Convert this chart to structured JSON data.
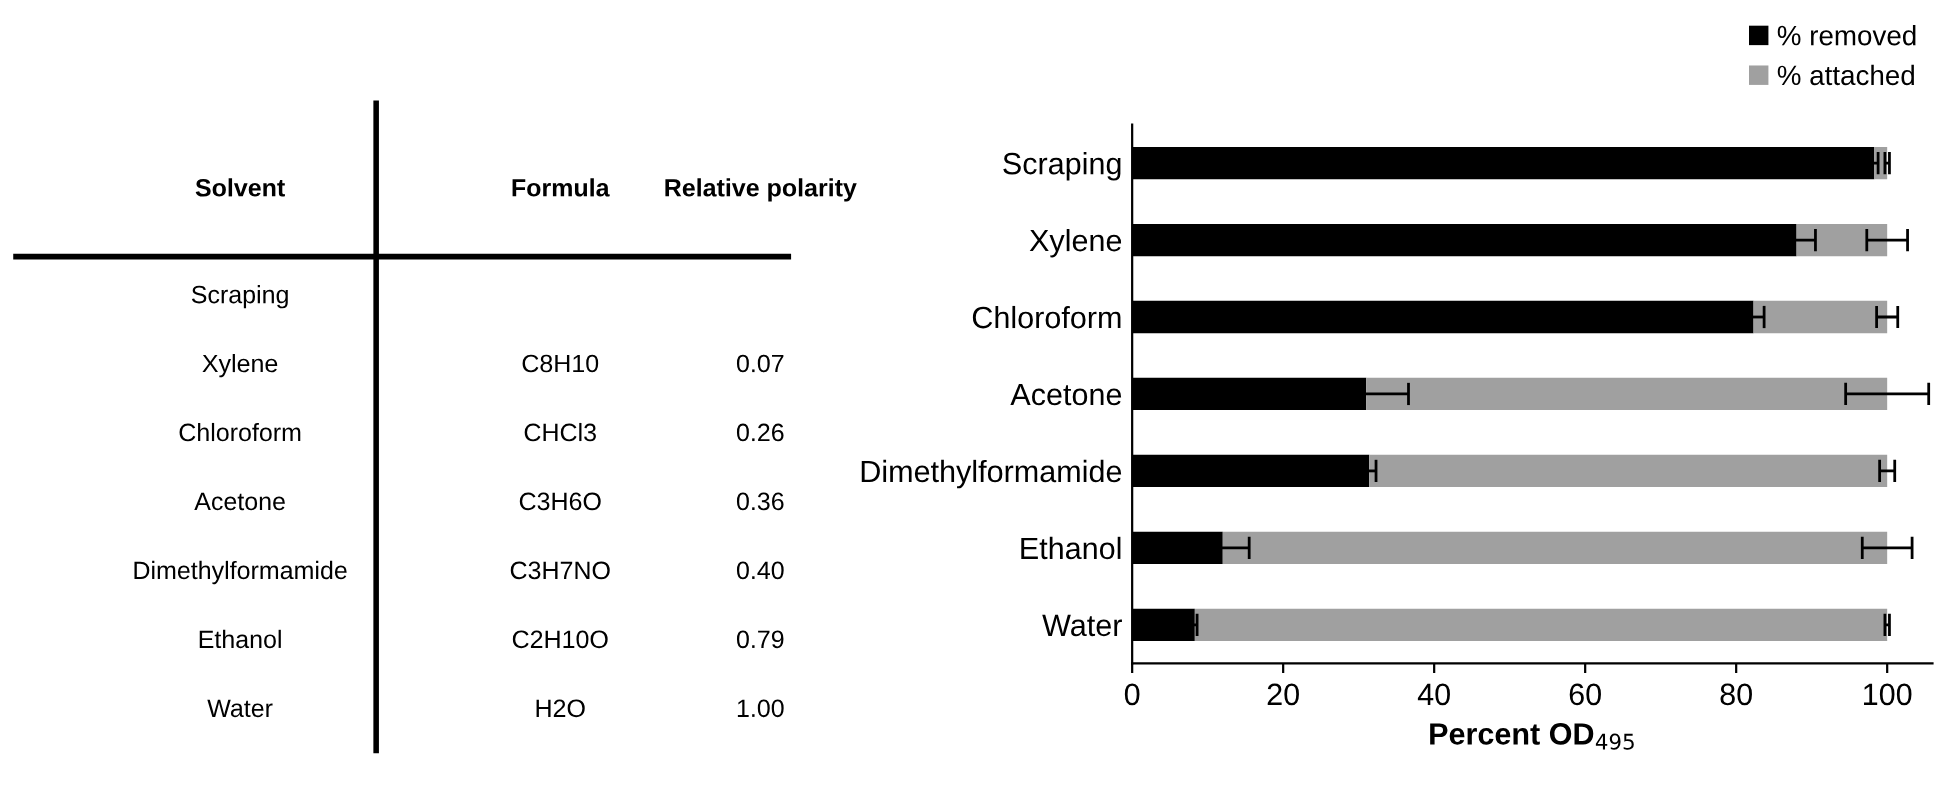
{
  "chart_data": [
    {
      "type": "other",
      "categories": [
        "Solvent",
        "Formula",
        "Relative polarity"
      ],
      "y_categories": [
        "Scraping",
        "Xylene",
        "Chloroform",
        "Acetone",
        "Dimethylformamide",
        "Ethanol",
        "Water"
      ],
      "cell_labels": [
        [
          null,
          null
        ],
        [
          "C8H10",
          "0.07"
        ],
        [
          "CHCl3",
          "0.26"
        ],
        [
          "C3H6O",
          "0.36"
        ],
        [
          "C3H7NO",
          "0.40"
        ],
        [
          "C2H10O",
          "0.79"
        ],
        [
          "H2O",
          "1.00"
        ]
      ]
    },
    {
      "type": "bar",
      "orientation": "horizontal",
      "stacked": true,
      "categories": [
        "Scraping",
        "Xylene",
        "Chloroform",
        "Acetone",
        "Dimethylformamide",
        "Ethanol",
        "Water"
      ],
      "series": [
        {
          "name": "% removed",
          "color": "#000000",
          "values": [
            98.3,
            88.0,
            82.3,
            31.0,
            31.4,
            12.0,
            8.3
          ],
          "errors": [
            0.5,
            2.5,
            1.4,
            5.6,
            0.9,
            3.5,
            0.3
          ]
        },
        {
          "name": "% attached",
          "color": "#a0a0a0",
          "values": [
            1.7,
            12.0,
            17.7,
            69.0,
            68.6,
            88.0,
            91.7
          ],
          "errors": [
            0.3,
            2.7,
            1.4,
            5.5,
            1.0,
            3.3,
            0.3
          ]
        }
      ],
      "xlabel": "Percent OD$_{495}$",
      "xlim": [
        0,
        106
      ],
      "xticks": [
        0,
        20,
        40,
        60,
        80,
        100
      ],
      "legend": "top right",
      "grid": false
    }
  ]
}
